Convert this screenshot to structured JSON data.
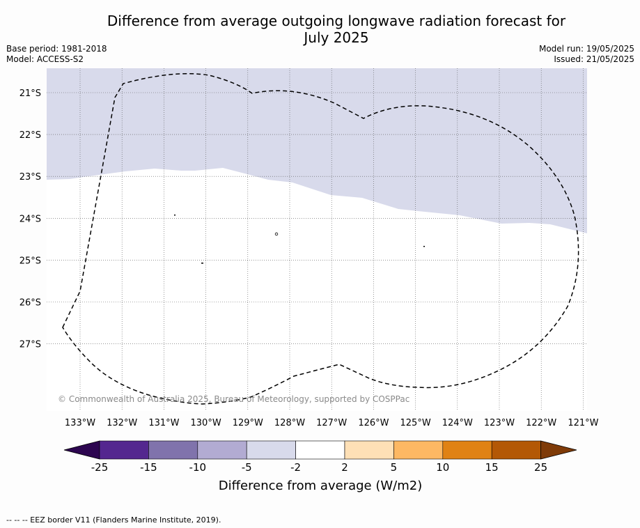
{
  "title_line1": "Difference from average outgoing longwave radiation forecast for",
  "title_line2": "July 2025",
  "base_period": "Base period: 1981-2018",
  "model": "Model: ACCESS-S2",
  "model_run": "Model run: 19/05/2025",
  "issued": "Issued: 21/05/2025",
  "copyright": "© Commonwealth of Australia 2025, Bureau of Meteorology, supported by COSPPac",
  "lon_labels": [
    "133°W",
    "132°W",
    "131°W",
    "130°W",
    "129°W",
    "128°W",
    "127°W",
    "126°W",
    "125°W",
    "124°W",
    "123°W",
    "122°W",
    "121°W"
  ],
  "lat_labels": [
    "21°S",
    "22°S",
    "23°S",
    "24°S",
    "25°S",
    "26°S",
    "27°S"
  ],
  "colorbar": {
    "ticks": [
      "-25",
      "-15",
      "-10",
      "-5",
      "-2",
      "2",
      "5",
      "10",
      "15",
      "25"
    ],
    "colors": [
      "#2d0650",
      "#54278f",
      "#8073ac",
      "#b2abd2",
      "#d8daeb",
      "#ffffff",
      "#fee0b6",
      "#fdb863",
      "#e08214",
      "#b35806",
      "#7f3b08"
    ],
    "label": "Difference from average (W/m2)"
  },
  "legend_note": "--  --  -- EEZ border V11 (Flanders Marine Institute, 2019)."
}
